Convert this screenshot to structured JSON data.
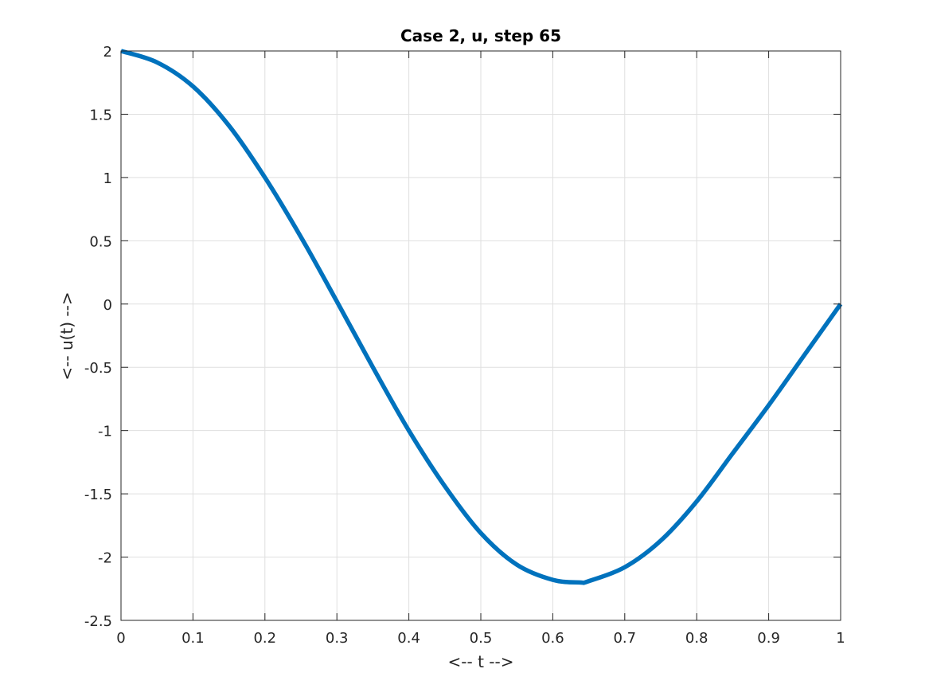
{
  "chart_data": {
    "type": "line",
    "title": "Case 2, u, step 65",
    "xlabel": "<-- t -->",
    "ylabel": "<-- u(t) -->",
    "xlim": [
      0,
      1
    ],
    "ylim": [
      -2.5,
      2
    ],
    "xticks": [
      0,
      0.1,
      0.2,
      0.3,
      0.4,
      0.5,
      0.6,
      0.7,
      0.8,
      0.9,
      1
    ],
    "xtick_labels": [
      "0",
      "0.1",
      "0.2",
      "0.3",
      "0.4",
      "0.5",
      "0.6",
      "0.7",
      "0.8",
      "0.9",
      "1"
    ],
    "yticks": [
      -2.5,
      -2,
      -1.5,
      -1,
      -0.5,
      0,
      0.5,
      1,
      1.5,
      2
    ],
    "ytick_labels": [
      "-2.5",
      "-2",
      "-1.5",
      "-1",
      "-0.5",
      "0",
      "0.5",
      "1",
      "1.5",
      "2"
    ],
    "grid": true,
    "line_color": "#0072BD",
    "series": [
      {
        "x": [
          0,
          0.05,
          0.1,
          0.15,
          0.2,
          0.25,
          0.3,
          0.35,
          0.4,
          0.45,
          0.5,
          0.55,
          0.6,
          0.637,
          0.65,
          0.7,
          0.75,
          0.8,
          0.85,
          0.9,
          0.95,
          1
        ],
        "y": [
          2.0,
          1.91,
          1.72,
          1.41,
          1.0,
          0.53,
          0.02,
          -0.5,
          -1.0,
          -1.44,
          -1.81,
          -2.06,
          -2.18,
          -2.2,
          -2.19,
          -2.08,
          -1.87,
          -1.56,
          -1.18,
          -0.8,
          -0.4,
          0.0
        ]
      }
    ]
  }
}
